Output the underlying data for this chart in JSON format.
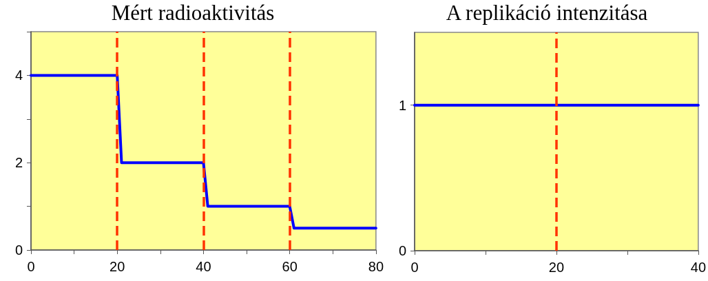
{
  "chart_data": [
    {
      "type": "line",
      "title": "Mért radioaktivitás",
      "x": [
        0,
        20,
        21,
        40,
        41,
        60,
        61,
        80
      ],
      "series": [
        {
          "color": "#0000ff",
          "values": [
            4,
            4,
            2,
            2,
            1,
            1,
            0.5,
            0.5
          ]
        }
      ],
      "xlim": [
        0,
        80
      ],
      "xticks": [
        0,
        {
          "value": 10,
          "label": null
        },
        20,
        {
          "value": 30,
          "label": null
        },
        40,
        {
          "value": 50,
          "label": null
        },
        60,
        {
          "value": 70,
          "label": null
        },
        80
      ],
      "ylim": [
        0,
        5
      ],
      "yticks": [
        0,
        {
          "value": 1,
          "label": null
        },
        2,
        {
          "value": 3,
          "label": null
        },
        4,
        {
          "value": 5,
          "label": null
        }
      ],
      "ref_lines": [
        {
          "axis": "x",
          "value": 20,
          "color": "#ff3300",
          "line_style": "dashed"
        },
        {
          "axis": "x",
          "value": 40,
          "color": "#ff3300",
          "line_style": "dashed"
        },
        {
          "axis": "x",
          "value": 60,
          "color": "#ff3300",
          "line_style": "dashed"
        }
      ]
    },
    {
      "type": "line",
      "title": "A replikáció intenzitása",
      "x": [
        0,
        40
      ],
      "series": [
        {
          "color": "#0000ff",
          "values": [
            1,
            1
          ]
        }
      ],
      "xlim": [
        0,
        40
      ],
      "xticks": [
        0,
        {
          "value": 10,
          "label": null
        },
        20,
        {
          "value": 30,
          "label": null
        },
        40
      ],
      "ylim": [
        0,
        1.5
      ],
      "yticks": [
        0,
        1
      ],
      "ref_lines": [
        {
          "axis": "x",
          "value": 20,
          "color": "#ff3300",
          "line_style": "dashed"
        }
      ]
    }
  ]
}
